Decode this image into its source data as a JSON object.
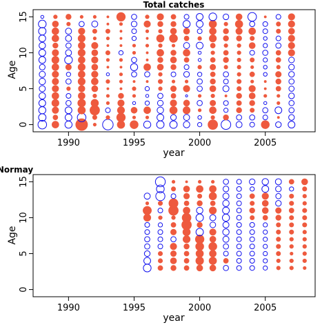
{
  "colors": {
    "positive": "#EE5A3E",
    "negative": "#1010EE",
    "frame": "#000000"
  },
  "chart_data": [
    {
      "type": "scatter",
      "subtype": "bubble",
      "title": "Total catches",
      "xlabel": "year",
      "ylabel": "Age",
      "xlim": [
        1987.3,
        2008.8
      ],
      "ylim": [
        -1,
        16
      ],
      "xticks": [
        "1990",
        "1995",
        "2000",
        "2005"
      ],
      "yticks": [
        "0",
        "5",
        "10",
        "15"
      ],
      "years": [
        1988,
        1989,
        1990,
        1991,
        1992,
        1993,
        1994,
        1995,
        1996,
        1997,
        1998,
        1999,
        2000,
        2001,
        2002,
        2003,
        2004,
        2005,
        2006,
        2007
      ],
      "ages": [
        0,
        1,
        2,
        3,
        4,
        5,
        6,
        7,
        8,
        9,
        10,
        11,
        12,
        13,
        14,
        15
      ],
      "residuals": [
        [
          -1.6,
          -1.2,
          -1.1,
          -1.0,
          -0.9,
          -0.8,
          -0.9,
          -0.8,
          -0.7,
          -1.0,
          -1.0,
          -0.9,
          -1.0,
          -1.2,
          -1.3,
          -0.2
        ],
        [
          1.0,
          0.5,
          0.9,
          1.1,
          1.0,
          0.9,
          0.9,
          0.9,
          1.0,
          1.1,
          0.9,
          0.6,
          1.0,
          1.0,
          0.8,
          0.3
        ],
        [
          -1.1,
          -1.0,
          -1.0,
          -0.6,
          -0.5,
          0.3,
          -0.6,
          -0.4,
          0.7,
          -1.3,
          -0.8,
          -0.6,
          -0.8,
          -0.8,
          0.3,
          0.6
        ],
        [
          3.0,
          -1.6,
          1.2,
          1.3,
          1.0,
          0.9,
          1.1,
          1.0,
          1.1,
          1.0,
          1.1,
          1.0,
          1.1,
          0.9,
          -0.6,
          0.2
        ],
        [
          0.2,
          0.4,
          2.0,
          1.2,
          0.3,
          0.8,
          1.0,
          0.9,
          0.8,
          0.9,
          0.8,
          0.9,
          0.2,
          0.4,
          -0.8,
          0.2
        ],
        [
          -2.4,
          0.3,
          -0.5,
          0.2,
          0.2,
          0.1,
          0.3,
          -0.2,
          0.1,
          0.2,
          0.4,
          0.1,
          0.2,
          0.4,
          0.1,
          0.1
        ],
        [
          1.2,
          1.6,
          1.1,
          0.9,
          0.6,
          0.1,
          0.2,
          0.2,
          0.1,
          0.2,
          -0.4,
          0.1,
          0.1,
          0.1,
          0.2,
          1.6
        ],
        [
          1.4,
          0.2,
          0.8,
          -0.2,
          0.2,
          0.3,
          0.1,
          -0.6,
          -1.1,
          -0.6,
          0.2,
          0.2,
          -0.4,
          -0.5,
          -0.7,
          -0.6
        ],
        [
          -1.1,
          0.2,
          1.0,
          -0.4,
          -0.2,
          -0.4,
          0.1,
          -0.6,
          1.0,
          0.1,
          0.1,
          0.2,
          0.1,
          0.2,
          0.9,
          0.3
        ],
        [
          -1.2,
          -1.0,
          -0.9,
          -0.7,
          -0.6,
          0.3,
          0.4,
          0.3,
          0.8,
          0.6,
          1.0,
          0.3,
          1.2,
          0.3,
          0.6,
          0.9
        ],
        [
          -1.2,
          -0.7,
          1.2,
          0.9,
          0.5,
          0.7,
          0.2,
          -0.5,
          0.6,
          0.8,
          0.6,
          0.2,
          1.4,
          0.8,
          0.6,
          0.5
        ],
        [
          -0.9,
          -0.8,
          1.1,
          0.8,
          -0.1,
          0.9,
          0.2,
          -0.7,
          -0.5,
          0.5,
          1.0,
          -0.8,
          0.5,
          0.8,
          -1.1,
          -0.5
        ],
        [
          -0.4,
          -0.3,
          0.2,
          -0.6,
          0.2,
          -0.6,
          -0.6,
          -0.4,
          0.3,
          -0.2,
          -0.2,
          -1.0,
          0.3,
          -0.5,
          -1.0,
          -1.0
        ],
        [
          2.0,
          0.3,
          1.0,
          0.7,
          0.3,
          0.8,
          0.6,
          0.5,
          0.7,
          0.5,
          0.3,
          0.5,
          1.1,
          1.0,
          1.2,
          -1.3
        ],
        [
          -2.0,
          0.6,
          -0.4,
          -0.5,
          0.1,
          -0.8,
          -0.5,
          -0.6,
          0.3,
          0.6,
          0.5,
          0.3,
          0.6,
          0.6,
          0.3,
          -0.7
        ],
        [
          -0.8,
          -0.6,
          0.6,
          0.5,
          0.6,
          0.4,
          0.4,
          0.3,
          0.3,
          0.3,
          0.3,
          0.3,
          0.6,
          0.9,
          1.2,
          0.8
        ],
        [
          -0.5,
          -0.6,
          0.4,
          0.6,
          0.8,
          0.9,
          0.2,
          0.5,
          0.2,
          0.4,
          -0.5,
          0.8,
          0.4,
          1.0,
          -0.6,
          -1.6
        ],
        [
          1.4,
          -0.5,
          -0.6,
          -0.2,
          0.2,
          0.1,
          0.1,
          -0.3,
          -0.3,
          -0.4,
          -0.6,
          -0.4,
          -0.3,
          -0.5,
          -0.5,
          0.1
        ],
        [
          -0.7,
          0.1,
          -1.0,
          0.2,
          0.2,
          0.5,
          0.6,
          0.7,
          0.3,
          0.5,
          0.5,
          -0.6,
          -0.5,
          0.4,
          0.4,
          -0.5
        ],
        [
          -1.0,
          -0.7,
          -0.6,
          -0.6,
          -0.7,
          -0.6,
          -0.6,
          -0.7,
          -0.7,
          -0.7,
          0.9,
          0.9,
          0.9,
          0.8,
          0.9,
          0.9
        ]
      ]
    },
    {
      "type": "scatter",
      "subtype": "bubble",
      "title": "Normay",
      "xlabel": "year",
      "ylabel": "Age",
      "xlim": [
        1987.3,
        2008.8
      ],
      "ylim": [
        -1,
        16
      ],
      "xticks": [
        "1990",
        "1995",
        "2000",
        "2005"
      ],
      "yticks": [
        "0",
        "5",
        "10",
        "15"
      ],
      "years": [
        1996,
        1997,
        1998,
        1999,
        2000,
        2001,
        2002,
        2003,
        2004,
        2005,
        2006,
        2007,
        2008
      ],
      "ages": [
        3,
        4,
        5,
        6,
        7,
        8,
        9,
        10,
        11,
        12,
        13,
        14,
        15
      ],
      "residuals": [
        [
          -1.3,
          -1.0,
          -0.7,
          -0.6,
          -0.6,
          -0.5,
          -0.5,
          1.1,
          1.5,
          0.2,
          -0.8,
          0.0,
          0.0
        ],
        [
          0.5,
          0.4,
          0.4,
          -0.5,
          -0.5,
          -0.5,
          -0.4,
          0.3,
          -0.5,
          0.4,
          -1.8,
          -1.3,
          -2.1
        ],
        [
          0.6,
          0.8,
          0.7,
          0.9,
          -0.6,
          0.7,
          0.5,
          0.3,
          2.0,
          1.8,
          -0.5,
          0.4,
          0.2
        ],
        [
          0.5,
          0.5,
          0.5,
          0.6,
          1.1,
          1.2,
          2.0,
          1.7,
          1.0,
          0.5,
          0.7,
          0.8,
          0.1
        ],
        [
          0.8,
          1.3,
          1.2,
          1.4,
          1.6,
          -1.2,
          0.6,
          -1.2,
          -0.9,
          0.6,
          0.4,
          1.0,
          0.2
        ],
        [
          0.8,
          1.2,
          1.0,
          1.4,
          0.8,
          0.9,
          -0.7,
          -0.8,
          1.1,
          0.5,
          1.2,
          1.0,
          0.2
        ],
        [
          -0.6,
          0.5,
          -0.5,
          -0.6,
          -0.8,
          -0.9,
          -0.8,
          -1.1,
          -1.0,
          -0.9,
          -0.8,
          -0.7,
          -0.6
        ],
        [
          -0.5,
          -0.5,
          -0.5,
          -0.5,
          -0.5,
          -0.5,
          -0.5,
          -0.5,
          -0.5,
          -0.5,
          -0.5,
          -0.5,
          -0.5
        ],
        [
          -0.5,
          -0.5,
          -0.5,
          -0.5,
          -0.5,
          -0.5,
          -0.5,
          0.4,
          0.6,
          0.4,
          0.5,
          -0.4,
          -0.7
        ],
        [
          -0.4,
          -0.4,
          -0.4,
          -0.4,
          -0.4,
          -0.4,
          -0.4,
          0.5,
          0.8,
          0.8,
          0.9,
          -1.0,
          -0.9
        ],
        [
          0.3,
          0.3,
          0.4,
          0.4,
          0.4,
          0.4,
          0.4,
          0.6,
          0.7,
          -0.7,
          -0.6,
          -0.7,
          -0.8
        ],
        [
          0.3,
          0.3,
          0.2,
          0.3,
          0.3,
          0.4,
          0.4,
          0.4,
          0.5,
          0.4,
          0.4,
          -0.4,
          0.5
        ],
        [
          0.2,
          0.3,
          0.3,
          0.3,
          0.3,
          0.3,
          0.4,
          0.4,
          0.4,
          0.3,
          0.3,
          0.4,
          0.8
        ]
      ]
    }
  ]
}
